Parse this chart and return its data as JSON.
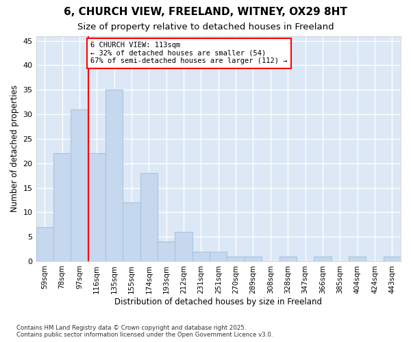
{
  "title1": "6, CHURCH VIEW, FREELAND, WITNEY, OX29 8HT",
  "title2": "Size of property relative to detached houses in Freeland",
  "xlabel": "Distribution of detached houses by size in Freeland",
  "ylabel": "Number of detached properties",
  "categories": [
    "59sqm",
    "78sqm",
    "97sqm",
    "116sqm",
    "135sqm",
    "155sqm",
    "174sqm",
    "193sqm",
    "212sqm",
    "231sqm",
    "251sqm",
    "270sqm",
    "289sqm",
    "308sqm",
    "328sqm",
    "347sqm",
    "366sqm",
    "385sqm",
    "404sqm",
    "424sqm",
    "443sqm"
  ],
  "values": [
    7,
    22,
    31,
    22,
    35,
    12,
    18,
    4,
    6,
    2,
    2,
    1,
    1,
    0,
    1,
    0,
    1,
    0,
    1,
    0,
    1
  ],
  "bar_color": "#c5d8ee",
  "bar_edge_color": "#a8c4de",
  "red_line_index": 3,
  "annotation_text": "6 CHURCH VIEW: 113sqm\n← 32% of detached houses are smaller (54)\n67% of semi-detached houses are larger (112) →",
  "ylim": [
    0,
    46
  ],
  "yticks": [
    0,
    5,
    10,
    15,
    20,
    25,
    30,
    35,
    40,
    45
  ],
  "bg_color": "#ffffff",
  "plot_bg_color": "#dce8f5",
  "grid_color": "#ffffff",
  "footer_text": "Contains HM Land Registry data © Crown copyright and database right 2025.\nContains public sector information licensed under the Open Government Licence v3.0."
}
